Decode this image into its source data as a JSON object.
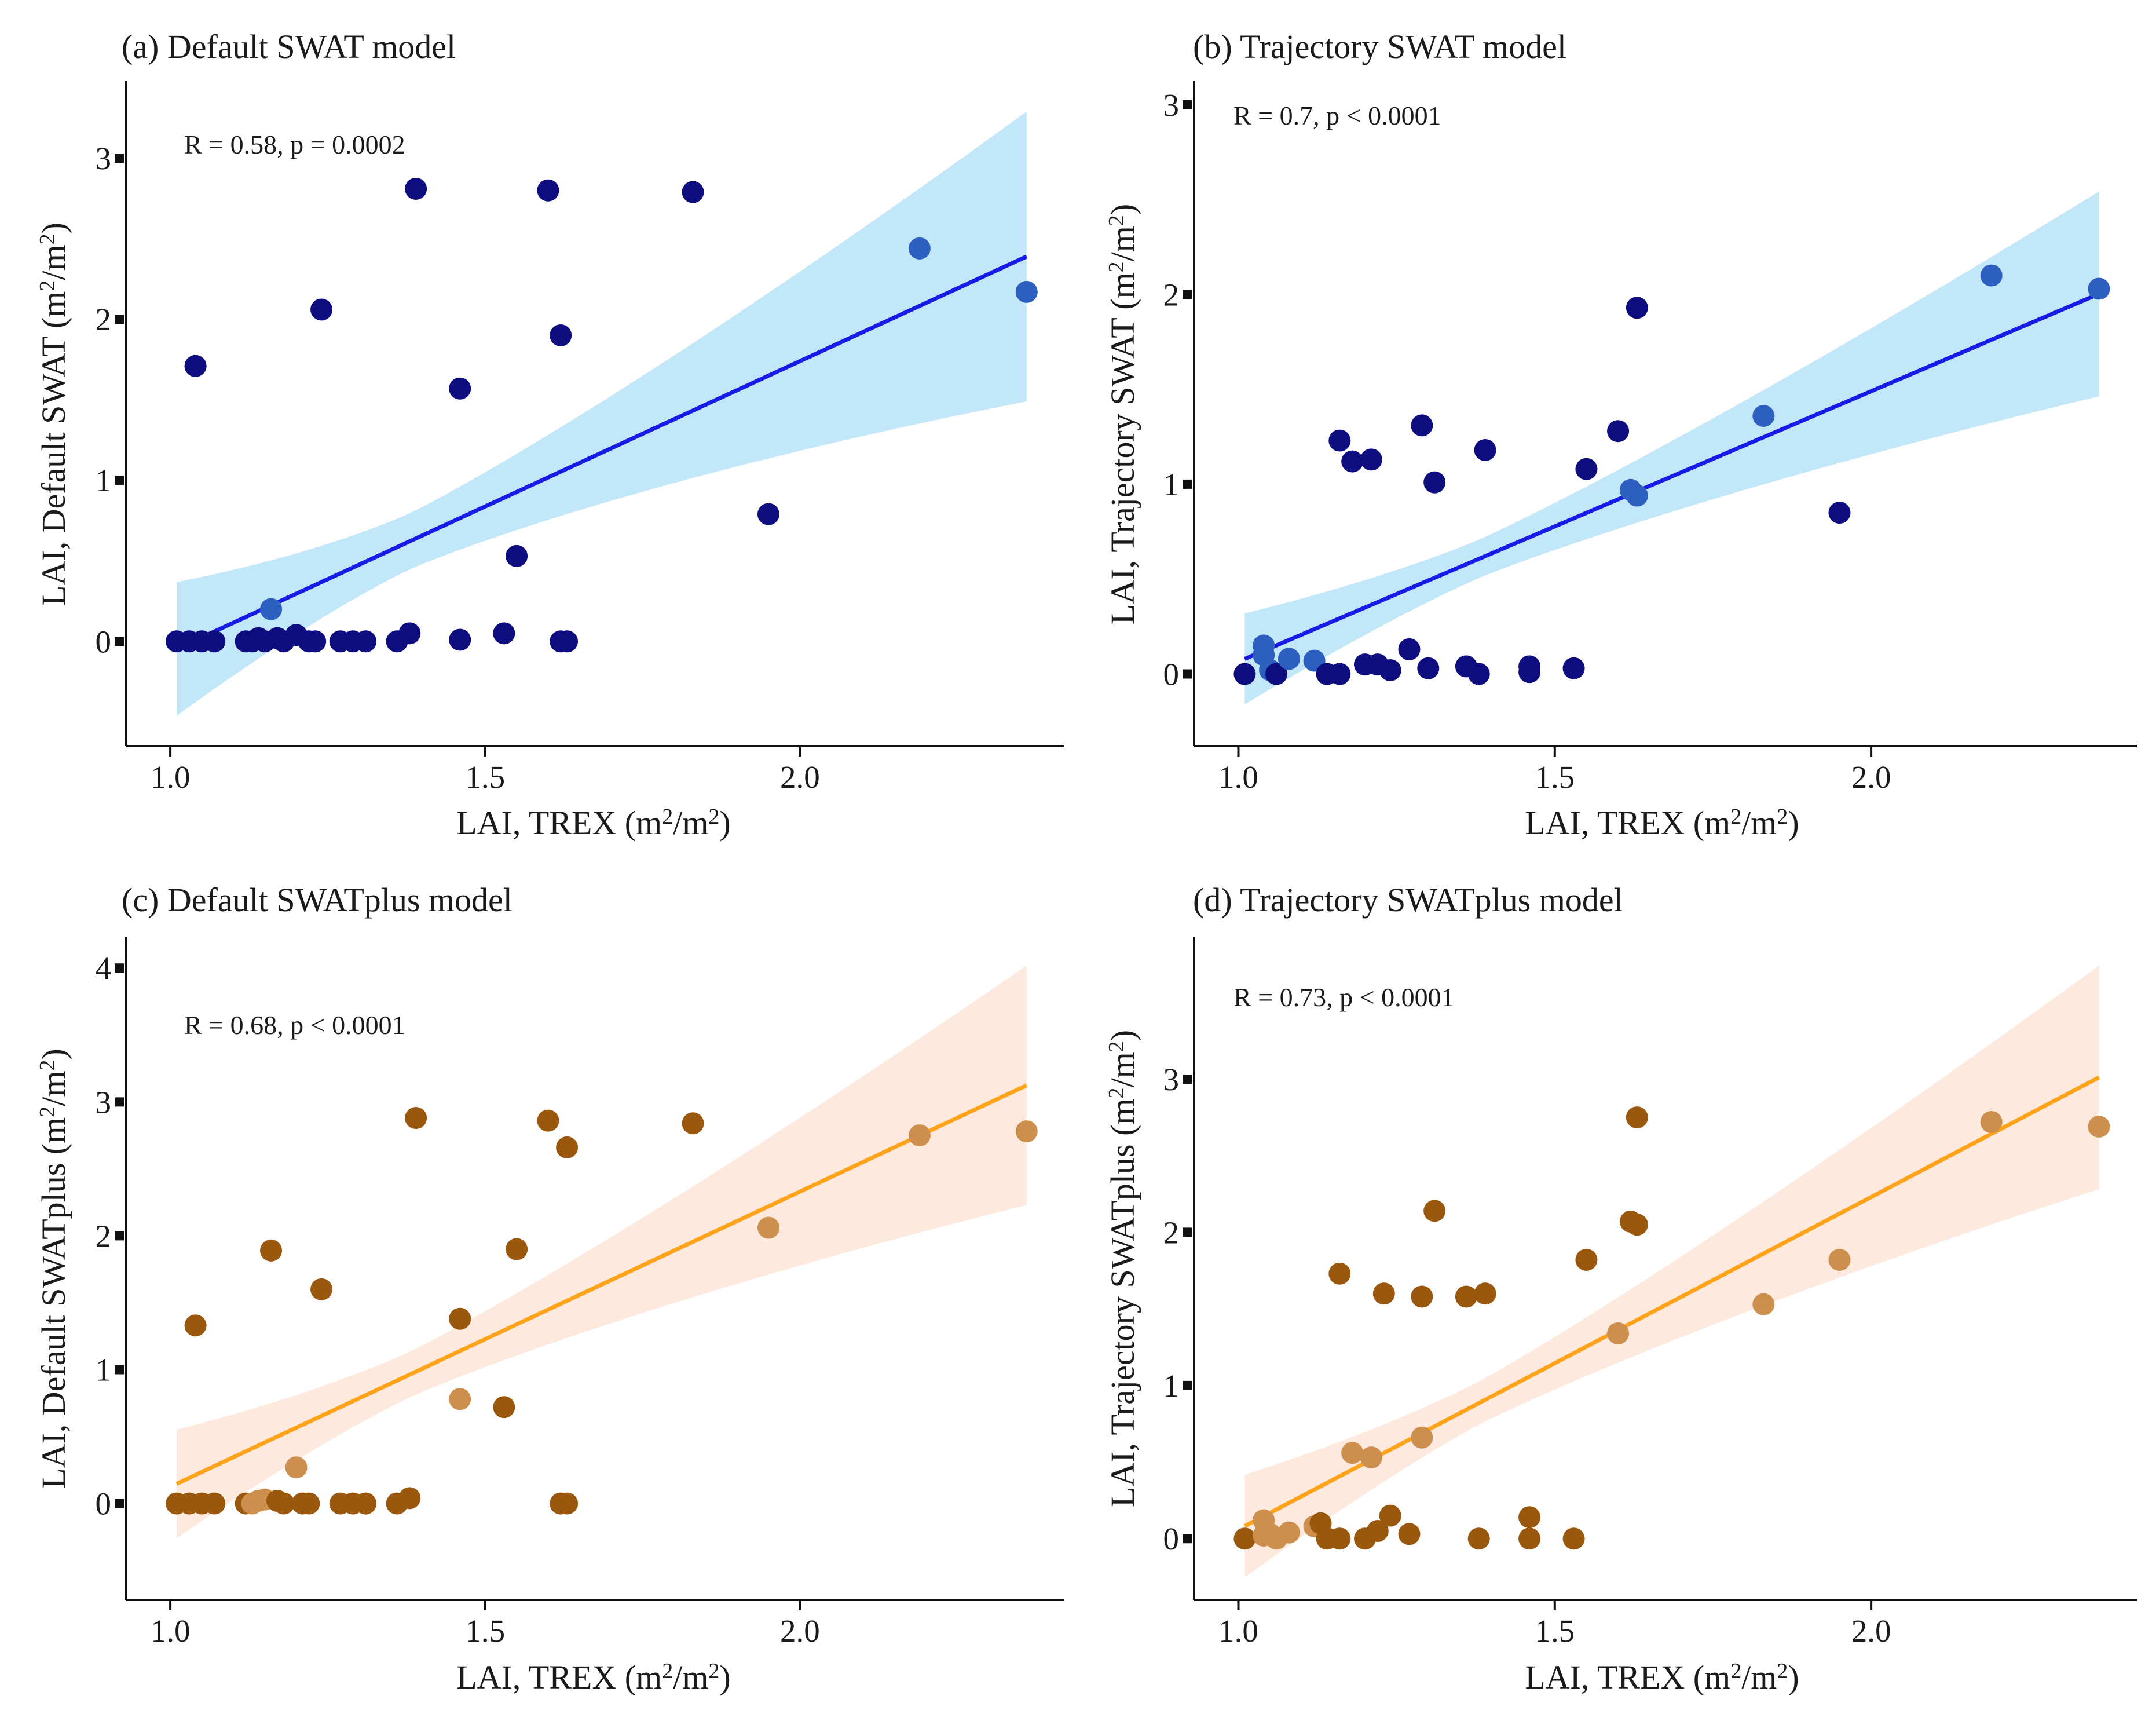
{
  "chart_data": [
    {
      "type": "scatter",
      "title": "(a) Default SWAT model",
      "xlabel": "LAI, TREX (m2/m2)",
      "ylabel": "LAI, Default SWAT (m2/m2)",
      "xlim": [
        0.93,
        2.42
      ],
      "ylim": [
        -0.65,
        3.45
      ],
      "xticks": [
        "1.0",
        "1.5",
        "2.0"
      ],
      "yticks": [
        "0",
        "1",
        "2",
        "3"
      ],
      "annotation": "R = 0.58, p = 0.0002",
      "regression": {
        "intercept": -1.87,
        "slope": 1.805,
        "ci_low_start": -0.45,
        "ci_high_start": 0.38,
        "ci_low_end": 1.47,
        "ci_high_end": 3.27
      },
      "colors": {
        "dark": "#0d0d80",
        "light": "#2c5fc0",
        "line": "#1a1ae6",
        "band": "#c2e7f8"
      },
      "points": [
        {
          "x": 1.01,
          "y": 0.0
        },
        {
          "x": 1.03,
          "y": 0.0
        },
        {
          "x": 1.04,
          "y": 1.71
        },
        {
          "x": 1.05,
          "y": 0.0
        },
        {
          "x": 1.07,
          "y": 0.0
        },
        {
          "x": 1.12,
          "y": 0.0
        },
        {
          "x": 1.13,
          "y": 0.0
        },
        {
          "x": 1.14,
          "y": 0.02
        },
        {
          "x": 1.15,
          "y": 0.0
        },
        {
          "x": 1.16,
          "y": 0.2,
          "tone": "light"
        },
        {
          "x": 1.17,
          "y": 0.02
        },
        {
          "x": 1.18,
          "y": 0.0
        },
        {
          "x": 1.2,
          "y": 0.04
        },
        {
          "x": 1.22,
          "y": 0.0
        },
        {
          "x": 1.23,
          "y": 0.0
        },
        {
          "x": 1.24,
          "y": 2.06
        },
        {
          "x": 1.27,
          "y": 0.0
        },
        {
          "x": 1.29,
          "y": 0.0
        },
        {
          "x": 1.31,
          "y": 0.0
        },
        {
          "x": 1.36,
          "y": 0.0
        },
        {
          "x": 1.38,
          "y": 0.05
        },
        {
          "x": 1.39,
          "y": 2.81
        },
        {
          "x": 1.46,
          "y": 0.01
        },
        {
          "x": 1.46,
          "y": 1.57
        },
        {
          "x": 1.53,
          "y": 0.05
        },
        {
          "x": 1.55,
          "y": 0.53
        },
        {
          "x": 1.6,
          "y": 2.8
        },
        {
          "x": 1.62,
          "y": 0.0
        },
        {
          "x": 1.62,
          "y": 1.9
        },
        {
          "x": 1.63,
          "y": 0.0
        },
        {
          "x": 1.83,
          "y": 2.79
        },
        {
          "x": 1.95,
          "y": 0.79
        },
        {
          "x": 2.19,
          "y": 2.44,
          "tone": "light"
        },
        {
          "x": 2.36,
          "y": 2.17,
          "tone": "light"
        }
      ]
    },
    {
      "type": "scatter",
      "title": "(b) Trajectory SWAT model",
      "xlabel": "LAI, TREX (m2/m2)",
      "ylabel": "LAI, Trajectory SWAT (m2/m2)",
      "xlim": [
        0.93,
        2.42
      ],
      "ylim": [
        -0.38,
        3.1
      ],
      "xticks": [
        "1.0",
        "1.5",
        "2.0"
      ],
      "yticks": [
        "0",
        "1",
        "2",
        "3"
      ],
      "annotation": "R = 0.7, p < 0.0001",
      "regression": {
        "intercept": -1.36,
        "slope": 1.425,
        "ci_low_start": -0.21,
        "ci_high_start": 0.27,
        "ci_low_end": 1.49,
        "ci_high_end": 2.57
      },
      "colors": {
        "dark": "#0d0d80",
        "light": "#2c5fc0",
        "line": "#1a1ae6",
        "band": "#c2e7f8"
      },
      "points": [
        {
          "x": 1.01,
          "y": 0.0
        },
        {
          "x": 1.04,
          "y": 0.15,
          "tone": "light"
        },
        {
          "x": 1.04,
          "y": 0.1,
          "tone": "light"
        },
        {
          "x": 1.05,
          "y": 0.02,
          "tone": "light"
        },
        {
          "x": 1.06,
          "y": 0.0
        },
        {
          "x": 1.08,
          "y": 0.08,
          "tone": "light"
        },
        {
          "x": 1.12,
          "y": 0.07,
          "tone": "light"
        },
        {
          "x": 1.14,
          "y": 0.0
        },
        {
          "x": 1.16,
          "y": 0.0
        },
        {
          "x": 1.16,
          "y": 1.23
        },
        {
          "x": 1.18,
          "y": 1.12
        },
        {
          "x": 1.2,
          "y": 0.05
        },
        {
          "x": 1.21,
          "y": 1.13
        },
        {
          "x": 1.22,
          "y": 0.05
        },
        {
          "x": 1.24,
          "y": 0.02
        },
        {
          "x": 1.27,
          "y": 0.13
        },
        {
          "x": 1.29,
          "y": 1.31
        },
        {
          "x": 1.3,
          "y": 0.03
        },
        {
          "x": 1.31,
          "y": 1.01
        },
        {
          "x": 1.36,
          "y": 0.04
        },
        {
          "x": 1.38,
          "y": 0.0
        },
        {
          "x": 1.39,
          "y": 1.18
        },
        {
          "x": 1.46,
          "y": 0.04
        },
        {
          "x": 1.46,
          "y": 0.01
        },
        {
          "x": 1.53,
          "y": 0.03
        },
        {
          "x": 1.55,
          "y": 1.08
        },
        {
          "x": 1.6,
          "y": 1.28
        },
        {
          "x": 1.62,
          "y": 0.97,
          "tone": "light"
        },
        {
          "x": 1.63,
          "y": 0.94,
          "tone": "light"
        },
        {
          "x": 1.63,
          "y": 1.93
        },
        {
          "x": 1.83,
          "y": 1.36,
          "tone": "light"
        },
        {
          "x": 1.95,
          "y": 0.85
        },
        {
          "x": 2.19,
          "y": 2.1,
          "tone": "light"
        },
        {
          "x": 2.36,
          "y": 2.03,
          "tone": "light"
        }
      ]
    },
    {
      "type": "scatter",
      "title": "(c) Default SWATplus model",
      "xlabel": "LAI, TREX (m2/m2)",
      "ylabel": "LAI, Default SWATplus (m2/m2)",
      "xlim": [
        0.93,
        2.42
      ],
      "ylim": [
        -0.72,
        4.2
      ],
      "xticks": [
        "1.0",
        "1.5",
        "2.0"
      ],
      "yticks": [
        "0",
        "1",
        "2",
        "3",
        "4"
      ],
      "annotation": "R = 0.68, p < 0.0001",
      "regression": {
        "intercept": -2.08,
        "slope": 2.205,
        "ci_low_start": -0.45,
        "ci_high_start": 0.36,
        "ci_low_end": 2.2,
        "ci_high_end": 3.99
      },
      "colors": {
        "dark": "#99580d",
        "light": "#cd8f4d",
        "line": "#ffa31a",
        "band": "#fde9dd"
      },
      "points": [
        {
          "x": 1.01,
          "y": 0.0
        },
        {
          "x": 1.03,
          "y": 0.0
        },
        {
          "x": 1.04,
          "y": 1.33
        },
        {
          "x": 1.05,
          "y": 0.0
        },
        {
          "x": 1.07,
          "y": 0.0
        },
        {
          "x": 1.12,
          "y": 0.0
        },
        {
          "x": 1.13,
          "y": 0.0,
          "tone": "light"
        },
        {
          "x": 1.14,
          "y": 0.02,
          "tone": "light"
        },
        {
          "x": 1.15,
          "y": 0.03,
          "tone": "light"
        },
        {
          "x": 1.16,
          "y": 1.89
        },
        {
          "x": 1.17,
          "y": 0.02
        },
        {
          "x": 1.18,
          "y": 0.0
        },
        {
          "x": 1.2,
          "y": 0.27,
          "tone": "light"
        },
        {
          "x": 1.21,
          "y": 0.0
        },
        {
          "x": 1.22,
          "y": 0.0
        },
        {
          "x": 1.24,
          "y": 1.6
        },
        {
          "x": 1.27,
          "y": 0.0
        },
        {
          "x": 1.29,
          "y": 0.0
        },
        {
          "x": 1.31,
          "y": 0.0
        },
        {
          "x": 1.36,
          "y": 0.0
        },
        {
          "x": 1.38,
          "y": 0.04
        },
        {
          "x": 1.39,
          "y": 2.88
        },
        {
          "x": 1.46,
          "y": 1.38
        },
        {
          "x": 1.46,
          "y": 0.78,
          "tone": "light"
        },
        {
          "x": 1.53,
          "y": 0.72
        },
        {
          "x": 1.55,
          "y": 1.9
        },
        {
          "x": 1.6,
          "y": 2.86
        },
        {
          "x": 1.62,
          "y": 0.0
        },
        {
          "x": 1.63,
          "y": 0.0
        },
        {
          "x": 1.63,
          "y": 2.66
        },
        {
          "x": 1.83,
          "y": 2.84
        },
        {
          "x": 1.95,
          "y": 2.06,
          "tone": "light"
        },
        {
          "x": 2.19,
          "y": 2.75,
          "tone": "light"
        },
        {
          "x": 2.36,
          "y": 2.78,
          "tone": "light"
        }
      ]
    },
    {
      "type": "scatter",
      "title": "(d) Trajectory SWATplus model",
      "xlabel": "LAI, TREX (m2/m2)",
      "ylabel": "LAI, Trajectory SWATplus (m2/m2)",
      "xlim": [
        0.93,
        2.42
      ],
      "ylim": [
        -0.4,
        3.9
      ],
      "xticks": [
        "1.0",
        "1.5",
        "2.0"
      ],
      "yticks": [
        "0",
        "1",
        "2",
        "3"
      ],
      "annotation": "R = 0.73, p < 0.0001",
      "regression": {
        "intercept": -2.11,
        "slope": 2.17,
        "ci_low_start": -0.24,
        "ci_high_start": 0.43,
        "ci_low_end": 2.26,
        "ci_high_end": 3.72
      },
      "colors": {
        "dark": "#99580d",
        "light": "#cd8f4d",
        "line": "#ffa31a",
        "band": "#fde9dd"
      },
      "points": [
        {
          "x": 1.01,
          "y": 0.0
        },
        {
          "x": 1.04,
          "y": 0.12,
          "tone": "light"
        },
        {
          "x": 1.04,
          "y": 0.02,
          "tone": "light"
        },
        {
          "x": 1.05,
          "y": 0.03,
          "tone": "light"
        },
        {
          "x": 1.06,
          "y": 0.0,
          "tone": "light"
        },
        {
          "x": 1.08,
          "y": 0.04,
          "tone": "light"
        },
        {
          "x": 1.12,
          "y": 0.08,
          "tone": "light"
        },
        {
          "x": 1.13,
          "y": 0.1
        },
        {
          "x": 1.14,
          "y": 0.0
        },
        {
          "x": 1.16,
          "y": 1.73
        },
        {
          "x": 1.16,
          "y": 0.0
        },
        {
          "x": 1.18,
          "y": 0.56,
          "tone": "light"
        },
        {
          "x": 1.2,
          "y": 0.0
        },
        {
          "x": 1.21,
          "y": 0.53,
          "tone": "light"
        },
        {
          "x": 1.22,
          "y": 0.05
        },
        {
          "x": 1.23,
          "y": 1.6
        },
        {
          "x": 1.24,
          "y": 0.15
        },
        {
          "x": 1.27,
          "y": 0.03
        },
        {
          "x": 1.29,
          "y": 0.66,
          "tone": "light"
        },
        {
          "x": 1.29,
          "y": 1.58
        },
        {
          "x": 1.31,
          "y": 2.14
        },
        {
          "x": 1.36,
          "y": 1.58
        },
        {
          "x": 1.38,
          "y": 0.0
        },
        {
          "x": 1.39,
          "y": 1.6
        },
        {
          "x": 1.46,
          "y": 0.14
        },
        {
          "x": 1.46,
          "y": 0.0
        },
        {
          "x": 1.53,
          "y": 0.0
        },
        {
          "x": 1.55,
          "y": 1.82
        },
        {
          "x": 1.6,
          "y": 1.34,
          "tone": "light"
        },
        {
          "x": 1.62,
          "y": 2.07
        },
        {
          "x": 1.63,
          "y": 2.05
        },
        {
          "x": 1.63,
          "y": 2.75
        },
        {
          "x": 1.83,
          "y": 1.53,
          "tone": "light"
        },
        {
          "x": 1.95,
          "y": 1.82,
          "tone": "light"
        },
        {
          "x": 2.19,
          "y": 2.72,
          "tone": "light"
        },
        {
          "x": 2.36,
          "y": 2.69,
          "tone": "light"
        }
      ]
    }
  ]
}
